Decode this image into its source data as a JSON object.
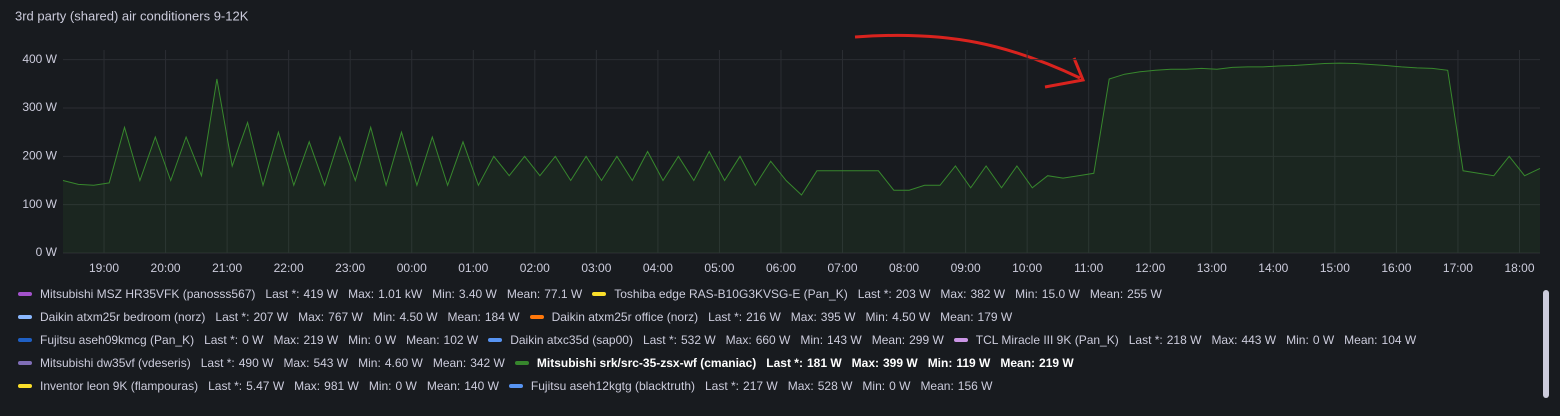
{
  "chart_data": {
    "type": "line",
    "title": "3rd party (shared) air conditioners 9-12K",
    "x": [
      "18:20",
      "18:35",
      "18:50",
      "19:05",
      "19:20",
      "19:35",
      "19:50",
      "20:05",
      "20:20",
      "20:35",
      "20:50",
      "21:05",
      "21:20",
      "21:35",
      "21:50",
      "22:05",
      "22:20",
      "22:35",
      "22:50",
      "23:05",
      "23:20",
      "23:35",
      "23:50",
      "00:05",
      "00:20",
      "00:35",
      "00:50",
      "01:05",
      "01:20",
      "01:35",
      "01:50",
      "02:05",
      "02:20",
      "02:35",
      "02:50",
      "03:05",
      "03:20",
      "03:35",
      "03:50",
      "04:05",
      "04:20",
      "04:35",
      "04:50",
      "05:05",
      "05:20",
      "05:35",
      "05:50",
      "06:05",
      "06:20",
      "06:35",
      "06:50",
      "07:05",
      "07:20",
      "07:35",
      "07:50",
      "08:05",
      "08:20",
      "08:35",
      "08:50",
      "09:05",
      "09:20",
      "09:35",
      "09:50",
      "10:05",
      "10:20",
      "10:35",
      "10:50",
      "11:05",
      "11:20",
      "11:35",
      "11:50",
      "12:05",
      "12:20",
      "12:35",
      "12:50",
      "13:05",
      "13:20",
      "13:35",
      "13:50",
      "14:05",
      "14:20",
      "14:35",
      "14:50",
      "15:05",
      "15:20",
      "15:35",
      "15:50",
      "16:05",
      "16:20",
      "16:35",
      "16:50",
      "17:05",
      "17:20",
      "17:35",
      "17:50",
      "18:05",
      "18:20"
    ],
    "xlim": [
      "18:20",
      "18:20"
    ],
    "xticks": [
      "19:00",
      "20:00",
      "21:00",
      "22:00",
      "23:00",
      "00:00",
      "01:00",
      "02:00",
      "03:00",
      "04:00",
      "05:00",
      "06:00",
      "07:00",
      "08:00",
      "09:00",
      "10:00",
      "11:00",
      "12:00",
      "13:00",
      "14:00",
      "15:00",
      "16:00",
      "17:00",
      "18:00"
    ],
    "ylim": [
      0,
      420
    ],
    "yticks": [
      {
        "value": 0,
        "label": "0 W"
      },
      {
        "value": 100,
        "label": "100 W"
      },
      {
        "value": 200,
        "label": "200 W"
      },
      {
        "value": 300,
        "label": "300 W"
      },
      {
        "value": 400,
        "label": "400 W"
      }
    ],
    "grid": true,
    "legend_stat_labels": [
      "Last *:",
      "Max:",
      "Min:",
      "Mean:"
    ],
    "series": [
      {
        "name": "Mitsubishi MSZ HR35VFK (panosss567)",
        "color": "#a352cc",
        "stats": [
          "419 W",
          "1.01 kW",
          "3.40 W",
          "77.1 W"
        ]
      },
      {
        "name": "Toshiba edge RAS-B10G3KVSG-E (Pan_K)",
        "color": "#fade2a",
        "stats": [
          "203 W",
          "382 W",
          "15.0 W",
          "255 W"
        ]
      },
      {
        "name": "Daikin atxm25r bedroom (norz)",
        "color": "#8ab8ff",
        "stats": [
          "207 W",
          "767 W",
          "4.50 W",
          "184 W"
        ]
      },
      {
        "name": "Daikin atxm25r office (norz)",
        "color": "#ff780a",
        "stats": [
          "216 W",
          "395 W",
          "4.50 W",
          "179 W"
        ]
      },
      {
        "name": "Fujitsu aseh09kmcg (Pan_K)",
        "color": "#1f60c4",
        "stats": [
          "0 W",
          "219 W",
          "0 W",
          "102 W"
        ]
      },
      {
        "name": "Daikin atxc35d (sap00)",
        "color": "#5794f2",
        "stats": [
          "532 W",
          "660 W",
          "143 W",
          "299 W"
        ]
      },
      {
        "name": "TCL Miracle III 9K (Pan_K)",
        "color": "#ca95e5",
        "stats": [
          "218 W",
          "443 W",
          "0 W",
          "104 W"
        ]
      },
      {
        "name": "Mitsubishi dw35vf (vdeseris)",
        "color": "#806eb7",
        "stats": [
          "490 W",
          "543 W",
          "4.60 W",
          "342 W"
        ]
      },
      {
        "name": "Mitsubishi srk/src-35-zsx-wf (cmaniac)",
        "color": "#37872d",
        "stats": [
          "181 W",
          "399 W",
          "119 W",
          "219 W"
        ],
        "values": [
          150,
          142,
          140,
          145,
          260,
          150,
          240,
          150,
          240,
          160,
          360,
          180,
          270,
          140,
          250,
          140,
          230,
          140,
          240,
          150,
          260,
          140,
          250,
          140,
          240,
          140,
          230,
          140,
          200,
          160,
          200,
          160,
          200,
          150,
          200,
          150,
          200,
          150,
          210,
          150,
          200,
          150,
          210,
          150,
          200,
          140,
          190,
          150,
          120,
          170,
          170,
          170,
          170,
          170,
          130,
          130,
          140,
          140,
          180,
          135,
          180,
          135,
          180,
          135,
          160,
          155,
          160,
          165,
          360,
          370,
          375,
          378,
          380,
          380,
          382,
          380,
          384,
          385,
          385,
          387,
          388,
          390,
          392,
          393,
          392,
          390,
          388,
          385,
          383,
          382,
          378,
          170,
          165,
          160,
          200,
          160,
          175
        ]
      },
      {
        "name": "Inventor leon 9K (flampouras)",
        "color": "#fade2a",
        "stats": [
          "5.47 W",
          "981 W",
          "0 W",
          "140 W"
        ]
      },
      {
        "name": "Fujitsu aseh12kgtg (blacktruth)",
        "color": "#5794f2",
        "stats": [
          "217 W",
          "528 W",
          "0 W",
          "156 W"
        ]
      }
    ]
  }
}
